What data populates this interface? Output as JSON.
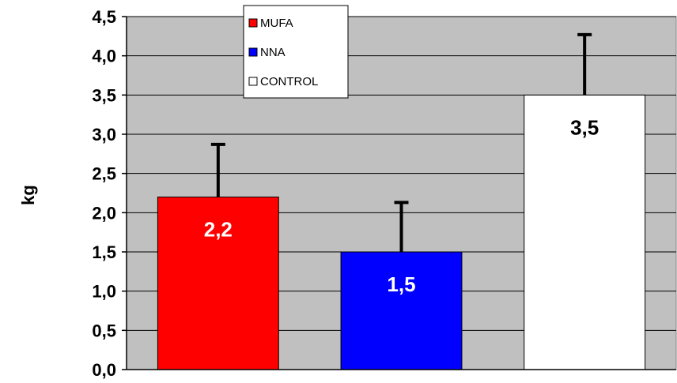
{
  "chart_data": {
    "type": "bar",
    "title": "",
    "xlabel": "",
    "ylabel": "kg",
    "ylim": [
      0,
      4.5
    ],
    "yticks": [
      "0,0",
      "0,5",
      "1,0",
      "1,5",
      "2,0",
      "2,5",
      "3,0",
      "3,5",
      "4,0",
      "4,5"
    ],
    "grid": true,
    "legend_position": "top-center",
    "categories": [
      "MUFA",
      "NNA",
      "CONTROL"
    ],
    "values": [
      2.2,
      1.5,
      3.5
    ],
    "error_upper": [
      2.87,
      2.13,
      4.27
    ],
    "data_labels": [
      "2,2",
      "1,5",
      "3,5"
    ],
    "colors": [
      "#ff0000",
      "#0000ff",
      "#ffffff"
    ],
    "label_colors": [
      "#ffffff",
      "#ffffff",
      "#000000"
    ],
    "plot_background": "#c0c0c0"
  }
}
